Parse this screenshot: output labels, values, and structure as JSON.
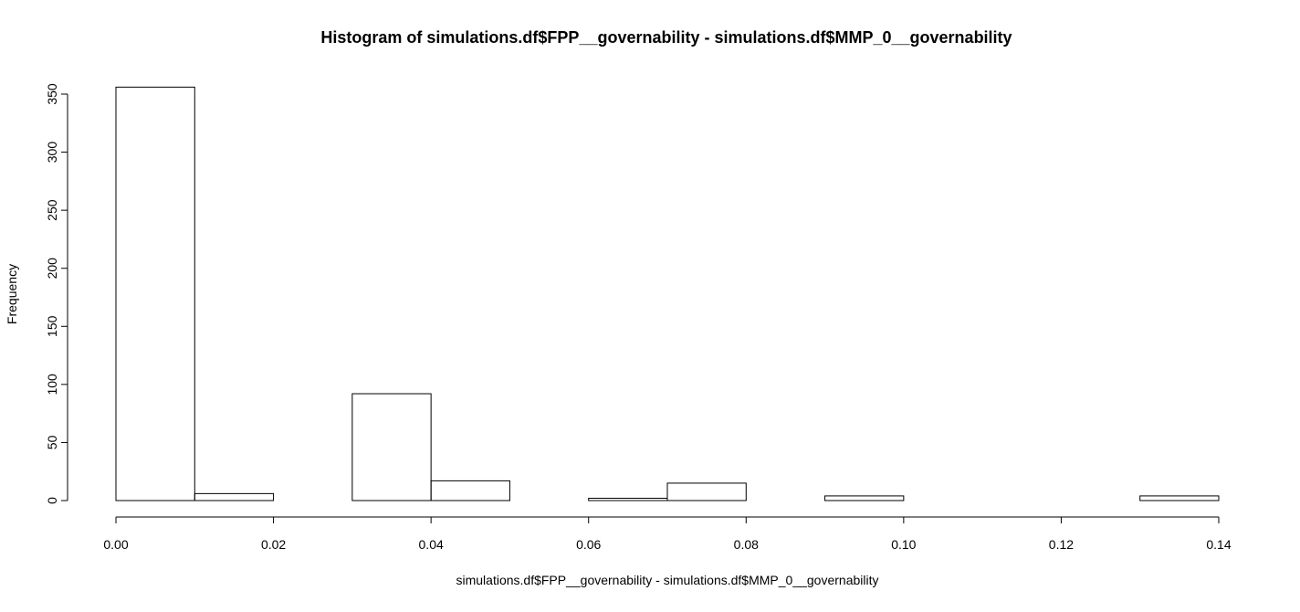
{
  "chart_data": {
    "type": "bar",
    "title": "Histogram of simulations.df$FPP__governability - simulations.df$MMP_0__governability",
    "xlabel": "simulations.df$FPP__governability - simulations.df$MMP_0__governability",
    "ylabel": "Frequency",
    "bins": [
      {
        "x0": 0.0,
        "x1": 0.01,
        "value": 356
      },
      {
        "x0": 0.01,
        "x1": 0.02,
        "value": 6
      },
      {
        "x0": 0.02,
        "x1": 0.03,
        "value": 0
      },
      {
        "x0": 0.03,
        "x1": 0.04,
        "value": 92
      },
      {
        "x0": 0.04,
        "x1": 0.05,
        "value": 17
      },
      {
        "x0": 0.05,
        "x1": 0.06,
        "value": 0
      },
      {
        "x0": 0.06,
        "x1": 0.07,
        "value": 2
      },
      {
        "x0": 0.07,
        "x1": 0.08,
        "value": 15
      },
      {
        "x0": 0.08,
        "x1": 0.09,
        "value": 0
      },
      {
        "x0": 0.09,
        "x1": 0.1,
        "value": 4
      },
      {
        "x0": 0.1,
        "x1": 0.11,
        "value": 0
      },
      {
        "x0": 0.11,
        "x1": 0.12,
        "value": 0
      },
      {
        "x0": 0.12,
        "x1": 0.13,
        "value": 0
      },
      {
        "x0": 0.13,
        "x1": 0.14,
        "value": 4
      }
    ],
    "xlim": [
      0,
      0.14
    ],
    "ylim": [
      0,
      356
    ],
    "x_ticks": [
      0.0,
      0.02,
      0.04,
      0.06,
      0.08,
      0.1,
      0.12,
      0.14
    ],
    "x_tick_labels": [
      "0.00",
      "0.02",
      "0.04",
      "0.06",
      "0.08",
      "0.10",
      "0.12",
      "0.14"
    ],
    "y_ticks": [
      0,
      50,
      100,
      150,
      200,
      250,
      300,
      350
    ],
    "y_tick_labels": [
      "0",
      "50",
      "100",
      "150",
      "200",
      "250",
      "300",
      "350"
    ],
    "grid": false,
    "bar_fill": "#ffffff",
    "bar_stroke": "#000000"
  }
}
